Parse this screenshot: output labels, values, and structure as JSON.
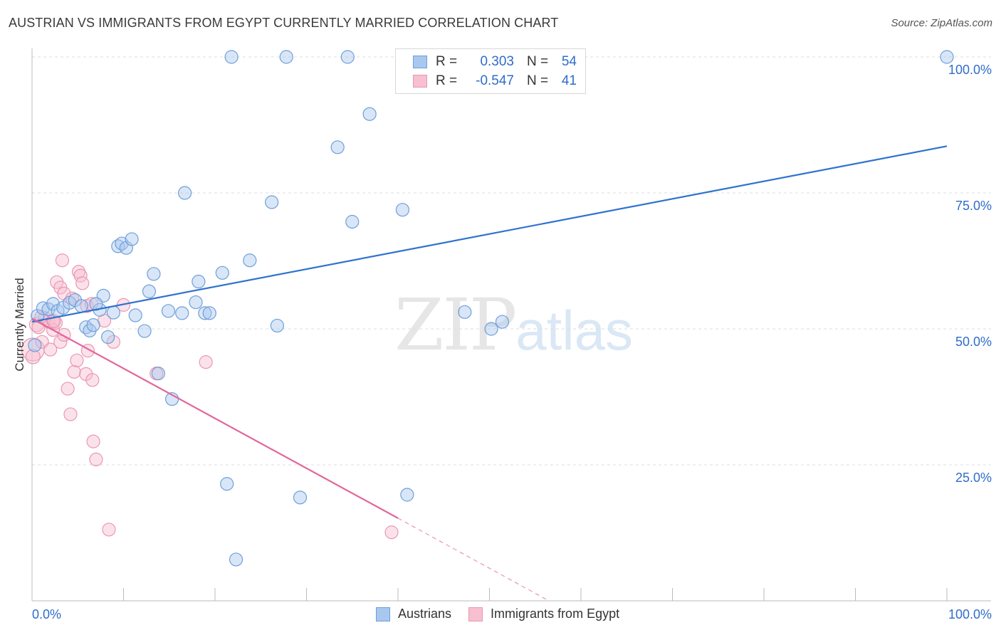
{
  "header": {
    "title": "AUSTRIAN VS IMMIGRANTS FROM EGYPT CURRENTLY MARRIED CORRELATION CHART",
    "source": "Source: ZipAtlas.com"
  },
  "watermark": {
    "zip": "ZIP",
    "atlas": "atlas"
  },
  "legend": {
    "rows": [
      {
        "r_label": "R =",
        "r_value": "0.303",
        "n_label": "N =",
        "n_value": "54"
      },
      {
        "r_label": "R =",
        "r_value": "-0.547",
        "n_label": "N =",
        "n_value": "41"
      }
    ],
    "series_names": [
      "Austrians",
      "Immigrants from Egypt"
    ]
  },
  "colors": {
    "blue_fill": "#a9c8ef",
    "blue_stroke": "#6f9fd8",
    "blue_line": "#2f72cf",
    "pink_fill": "#f7bfd0",
    "pink_stroke": "#ea97b4",
    "pink_line": "#e2669a",
    "tick_text": "#2f6cc9",
    "grid": "#dddddd"
  },
  "chart_data": {
    "type": "scatter",
    "title": "AUSTRIAN VS IMMIGRANTS FROM EGYPT CURRENTLY MARRIED CORRELATION CHART",
    "xlabel": "",
    "ylabel": "Currently Married",
    "xlim": [
      0,
      100
    ],
    "ylim": [
      0,
      100
    ],
    "x_tick_labels": [
      "0.0%",
      "100.0%"
    ],
    "y_ticks": [
      25,
      50,
      75,
      100
    ],
    "y_tick_labels": [
      "25.0%",
      "50.0%",
      "75.0%",
      "100.0%"
    ],
    "grid": true,
    "series": [
      {
        "name": "Austrians",
        "r": 0.303,
        "n": 54,
        "trend": {
          "x": [
            0,
            100
          ],
          "y": [
            51.3,
            83.6
          ]
        },
        "points": [
          {
            "x": 0.6,
            "y": 52.4,
            "s": 9
          },
          {
            "x": 1.2,
            "y": 53.8,
            "s": 9
          },
          {
            "x": 1.8,
            "y": 53.6,
            "s": 9
          },
          {
            "x": 2.3,
            "y": 54.6,
            "s": 9
          },
          {
            "x": 2.8,
            "y": 53.3,
            "s": 9
          },
          {
            "x": 3.4,
            "y": 53.9,
            "s": 9
          },
          {
            "x": 4.1,
            "y": 54.8,
            "s": 9
          },
          {
            "x": 4.7,
            "y": 55.3,
            "s": 9
          },
          {
            "x": 5.4,
            "y": 54.2,
            "s": 9
          },
          {
            "x": 5.9,
            "y": 50.3,
            "s": 9
          },
          {
            "x": 6.3,
            "y": 49.7,
            "s": 9
          },
          {
            "x": 6.7,
            "y": 50.7,
            "s": 9
          },
          {
            "x": 7.4,
            "y": 53.5,
            "s": 9
          },
          {
            "x": 7.8,
            "y": 56.1,
            "s": 9
          },
          {
            "x": 8.3,
            "y": 48.5,
            "s": 9
          },
          {
            "x": 8.9,
            "y": 53.0,
            "s": 9
          },
          {
            "x": 9.4,
            "y": 65.2,
            "s": 9
          },
          {
            "x": 9.8,
            "y": 65.7,
            "s": 9
          },
          {
            "x": 10.3,
            "y": 64.9,
            "s": 9
          },
          {
            "x": 10.9,
            "y": 66.5,
            "s": 9
          },
          {
            "x": 11.3,
            "y": 52.5,
            "s": 9
          },
          {
            "x": 12.3,
            "y": 49.6,
            "s": 9
          },
          {
            "x": 12.8,
            "y": 56.9,
            "s": 9
          },
          {
            "x": 13.3,
            "y": 60.1,
            "s": 9
          },
          {
            "x": 13.8,
            "y": 41.8,
            "s": 9
          },
          {
            "x": 14.9,
            "y": 53.3,
            "s": 9
          },
          {
            "x": 15.3,
            "y": 37.1,
            "s": 9
          },
          {
            "x": 16.4,
            "y": 52.9,
            "s": 9
          },
          {
            "x": 16.7,
            "y": 75.0,
            "s": 9
          },
          {
            "x": 17.9,
            "y": 54.9,
            "s": 9
          },
          {
            "x": 18.2,
            "y": 58.7,
            "s": 9
          },
          {
            "x": 18.9,
            "y": 52.9,
            "s": 9
          },
          {
            "x": 19.4,
            "y": 52.9,
            "s": 9
          },
          {
            "x": 20.8,
            "y": 60.3,
            "s": 9
          },
          {
            "x": 21.3,
            "y": 21.5,
            "s": 9
          },
          {
            "x": 21.8,
            "y": 100.0,
            "s": 9
          },
          {
            "x": 22.3,
            "y": 7.6,
            "s": 9
          },
          {
            "x": 23.8,
            "y": 62.6,
            "s": 9
          },
          {
            "x": 26.2,
            "y": 73.3,
            "s": 9
          },
          {
            "x": 26.8,
            "y": 50.6,
            "s": 9
          },
          {
            "x": 27.8,
            "y": 100.0,
            "s": 9
          },
          {
            "x": 29.3,
            "y": 19.0,
            "s": 9
          },
          {
            "x": 33.4,
            "y": 83.4,
            "s": 9
          },
          {
            "x": 34.5,
            "y": 100.0,
            "s": 9
          },
          {
            "x": 35.0,
            "y": 69.7,
            "s": 9
          },
          {
            "x": 36.9,
            "y": 89.5,
            "s": 9
          },
          {
            "x": 40.5,
            "y": 71.9,
            "s": 9
          },
          {
            "x": 41.0,
            "y": 19.5,
            "s": 9
          },
          {
            "x": 47.3,
            "y": 53.1,
            "s": 9
          },
          {
            "x": 50.2,
            "y": 50.0,
            "s": 9
          },
          {
            "x": 51.4,
            "y": 51.3,
            "s": 9
          },
          {
            "x": 100.0,
            "y": 100.0,
            "s": 9
          },
          {
            "x": 0.3,
            "y": 47.0,
            "s": 9
          },
          {
            "x": 7.0,
            "y": 54.6,
            "s": 9
          }
        ]
      },
      {
        "name": "Immigrants from Egypt",
        "r": -0.547,
        "n": 41,
        "trend": {
          "x": [
            0,
            40
          ],
          "y": [
            51.9,
            15.2
          ]
        },
        "trend_dashed": {
          "x": [
            40,
            56.5
          ],
          "y": [
            15.2,
            0.0
          ]
        },
        "points": [
          {
            "x": 0.1,
            "y": 46.2,
            "s": 16
          },
          {
            "x": 0.1,
            "y": 44.9,
            "s": 10
          },
          {
            "x": 0.5,
            "y": 50.8,
            "s": 10
          },
          {
            "x": 0.7,
            "y": 50.3,
            "s": 9
          },
          {
            "x": 1.1,
            "y": 47.6,
            "s": 9
          },
          {
            "x": 1.4,
            "y": 52.0,
            "s": 9
          },
          {
            "x": 1.8,
            "y": 51.3,
            "s": 9
          },
          {
            "x": 2.0,
            "y": 46.2,
            "s": 9
          },
          {
            "x": 2.3,
            "y": 51.5,
            "s": 9
          },
          {
            "x": 2.3,
            "y": 49.8,
            "s": 9
          },
          {
            "x": 2.6,
            "y": 51.1,
            "s": 9
          },
          {
            "x": 2.7,
            "y": 58.6,
            "s": 9
          },
          {
            "x": 3.1,
            "y": 57.6,
            "s": 9
          },
          {
            "x": 3.1,
            "y": 47.6,
            "s": 9
          },
          {
            "x": 3.3,
            "y": 62.6,
            "s": 9
          },
          {
            "x": 3.5,
            "y": 48.9,
            "s": 9
          },
          {
            "x": 3.5,
            "y": 56.5,
            "s": 9
          },
          {
            "x": 3.9,
            "y": 39.0,
            "s": 9
          },
          {
            "x": 4.2,
            "y": 34.3,
            "s": 9
          },
          {
            "x": 4.4,
            "y": 55.6,
            "s": 9
          },
          {
            "x": 4.6,
            "y": 42.1,
            "s": 9
          },
          {
            "x": 4.9,
            "y": 44.2,
            "s": 9
          },
          {
            "x": 5.1,
            "y": 60.5,
            "s": 9
          },
          {
            "x": 5.3,
            "y": 59.8,
            "s": 9
          },
          {
            "x": 5.5,
            "y": 58.4,
            "s": 9
          },
          {
            "x": 5.9,
            "y": 41.7,
            "s": 9
          },
          {
            "x": 6.0,
            "y": 54.2,
            "s": 9
          },
          {
            "x": 6.1,
            "y": 46.0,
            "s": 9
          },
          {
            "x": 6.5,
            "y": 54.6,
            "s": 9
          },
          {
            "x": 6.6,
            "y": 40.6,
            "s": 9
          },
          {
            "x": 6.7,
            "y": 29.3,
            "s": 9
          },
          {
            "x": 7.0,
            "y": 26.0,
            "s": 9
          },
          {
            "x": 7.9,
            "y": 51.5,
            "s": 9
          },
          {
            "x": 8.4,
            "y": 13.1,
            "s": 9
          },
          {
            "x": 8.9,
            "y": 47.6,
            "s": 9
          },
          {
            "x": 10.0,
            "y": 54.4,
            "s": 9
          },
          {
            "x": 13.6,
            "y": 41.8,
            "s": 9
          },
          {
            "x": 19.0,
            "y": 43.9,
            "s": 9
          },
          {
            "x": 39.3,
            "y": 12.6,
            "s": 9
          },
          {
            "x": 1.0,
            "y": 52.2,
            "s": 9
          },
          {
            "x": 2.4,
            "y": 51.4,
            "s": 9
          }
        ]
      }
    ]
  }
}
